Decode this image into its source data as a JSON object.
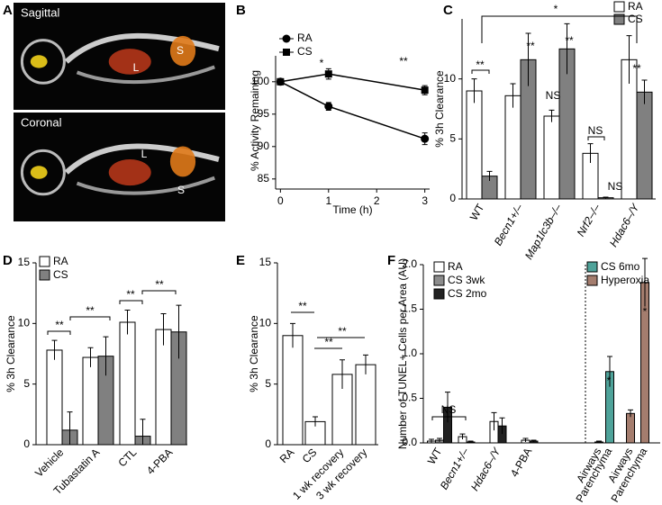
{
  "chart_data": [
    {
      "type": "image",
      "panel": "A",
      "views": [
        {
          "label": "Sagittal",
          "marks": [
            "L",
            "S"
          ]
        },
        {
          "label": "Coronal",
          "marks": [
            "L",
            "S"
          ]
        }
      ]
    },
    {
      "type": "line",
      "panel": "B",
      "xlabel": "Time (h)",
      "ylabel": "% Activity Remaining",
      "x": [
        0,
        1,
        3
      ],
      "xlim": [
        -0.1,
        3.1
      ],
      "xticks": [
        0,
        1,
        2,
        3
      ],
      "ylim": [
        84,
        104
      ],
      "yticks": [
        85,
        90,
        95,
        100
      ],
      "series": [
        {
          "name": "RA",
          "color": "#000000",
          "marker": "circle",
          "values": [
            100,
            96.2,
            91.2
          ],
          "errors": [
            0.3,
            0.6,
            0.9
          ]
        },
        {
          "name": "CS",
          "color": "#000000",
          "marker": "square",
          "values": [
            100,
            101.2,
            98.7
          ],
          "errors": [
            0.3,
            0.8,
            0.7
          ]
        }
      ],
      "annotations": [
        "*",
        "**"
      ]
    },
    {
      "type": "bar",
      "panel": "C",
      "ylabel": "% 3h Clearance",
      "categories": [
        "WT",
        "Becn1+/–",
        "Map1lc3b–/–",
        "Nrf2–/–",
        "Hdac6–/Y"
      ],
      "ylim": [
        0,
        15
      ],
      "yticks": [
        0,
        5,
        10
      ],
      "series": [
        {
          "name": "RA",
          "color": "#ffffff",
          "values": [
            9.0,
            8.6,
            6.9,
            3.8,
            11.6
          ],
          "errors": [
            1.0,
            1.0,
            0.5,
            0.8,
            2.0
          ]
        },
        {
          "name": "CS",
          "color": "#808080",
          "values": [
            1.9,
            11.6,
            12.5,
            0.1,
            8.9
          ],
          "errors": [
            0.4,
            2.2,
            2.1,
            0.05,
            1.0
          ]
        }
      ],
      "annotations": [
        "*",
        "**",
        "**",
        "**",
        "NS",
        "NS",
        "NS",
        "**"
      ]
    },
    {
      "type": "bar",
      "panel": "D",
      "ylabel": "% 3h Clearance",
      "categories": [
        "Vehicle",
        "Tubastatin A",
        "CTL",
        "4-PBA"
      ],
      "ylim": [
        0,
        15
      ],
      "yticks": [
        0,
        5,
        10,
        15
      ],
      "series": [
        {
          "name": "RA",
          "color": "#ffffff",
          "values": [
            7.8,
            7.2,
            10.1,
            9.5
          ],
          "errors": [
            0.8,
            0.8,
            1.0,
            1.3
          ]
        },
        {
          "name": "CS",
          "color": "#808080",
          "values": [
            1.2,
            7.3,
            0.7,
            9.3
          ],
          "errors": [
            1.5,
            1.6,
            1.4,
            2.2
          ]
        }
      ],
      "annotations": [
        "**",
        "**",
        "**",
        "**"
      ]
    },
    {
      "type": "bar",
      "panel": "E",
      "ylabel": "% 3h Clearance",
      "categories": [
        "RA",
        "CS",
        "1 wk recovery",
        "3 wk recovery"
      ],
      "ylim": [
        0,
        15
      ],
      "yticks": [
        0,
        5,
        10,
        15
      ],
      "series": [
        {
          "color": "#ffffff",
          "values": [
            9.0,
            1.9,
            5.8,
            6.6
          ],
          "errors": [
            1.0,
            0.4,
            1.2,
            0.8
          ]
        }
      ],
      "annotations": [
        "**",
        "**",
        "**"
      ]
    },
    {
      "type": "bar",
      "panel": "F",
      "ylabel": "Number of TUNEL+ Cells per Area (AU)",
      "categories": [
        "WT",
        "Becn1+/–",
        "Hdac6–/Y",
        "4-PBA",
        "Airways",
        "Parenchyma",
        "Airways",
        "Parenchyma"
      ],
      "ylim": [
        0,
        2.0
      ],
      "yticks": [
        {
          "value": 0,
          "label": "0.0"
        },
        0.5,
        {
          "value": 1,
          "label": "1.0"
        },
        1.5,
        {
          "value": 2,
          "label": "2.0"
        }
      ],
      "series": [
        {
          "name": "RA",
          "color": "#ffffff",
          "values": [
            0.02,
            0.07,
            0.24,
            0.03,
            null,
            null,
            null,
            null
          ],
          "errors": [
            0.02,
            0.03,
            0.1,
            0.02,
            null,
            null,
            null,
            null
          ]
        },
        {
          "name": "CS 3wk",
          "color": "#8c8c8c",
          "values": [
            0.03,
            null,
            null,
            null,
            null,
            null,
            null,
            null
          ],
          "errors": [
            0.02,
            null,
            null,
            null,
            null,
            null,
            null,
            null
          ]
        },
        {
          "name": "CS 2mo",
          "color": "#222222",
          "values": [
            0.4,
            0.01,
            0.19,
            0.02,
            null,
            null,
            null,
            null
          ],
          "errors": [
            0.17,
            0.01,
            0.09,
            0.01,
            null,
            null,
            null,
            null
          ]
        },
        {
          "name": "CS 6mo",
          "color": "#4fa39a",
          "values": [
            null,
            null,
            null,
            null,
            0.01,
            0.8,
            null,
            null
          ],
          "errors": [
            null,
            null,
            null,
            null,
            0.01,
            0.17,
            null,
            null
          ]
        },
        {
          "name": "Hyperoxia",
          "color": "#a47d6e",
          "values": [
            null,
            null,
            null,
            null,
            null,
            null,
            0.33,
            1.8
          ],
          "errors": [
            null,
            null,
            null,
            null,
            null,
            null,
            0.04,
            0.27
          ]
        }
      ],
      "annotations": [
        "NS",
        "*",
        "*"
      ]
    }
  ]
}
